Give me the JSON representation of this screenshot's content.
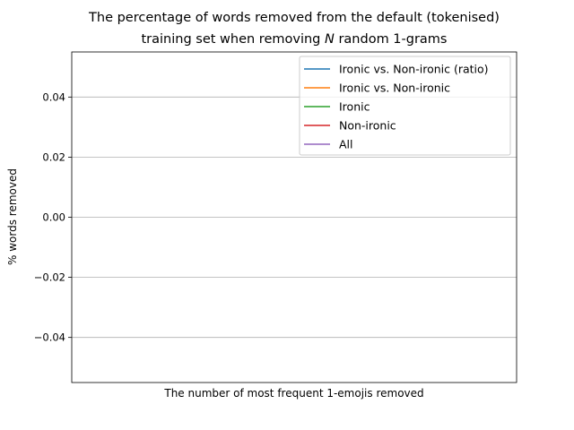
{
  "chart_data": {
    "type": "line",
    "title_line1": "The percentage of words removed from the default (tokenised)",
    "title_line2_pre": "training set when removing ",
    "title_line2_var": "N",
    "title_line2_post": " random 1-grams",
    "xlabel": "The number of most frequent 1-emojis removed",
    "ylabel": "% words removed",
    "ylim": [
      -0.055,
      0.055
    ],
    "yticks": [
      0.04,
      0.02,
      0.0,
      -0.02,
      -0.04
    ],
    "ytick_labels": [
      "0.04",
      "0.02",
      "0.00",
      "−0.02",
      "−0.04"
    ],
    "grid": "horizontal",
    "legend_position": "top-right",
    "series": [
      {
        "name": "Ironic vs. Non-ironic (ratio)",
        "color": "#1f77b4",
        "values": []
      },
      {
        "name": "Ironic vs. Non-ironic",
        "color": "#ff7f0e",
        "values": []
      },
      {
        "name": "Ironic",
        "color": "#2ca02c",
        "values": []
      },
      {
        "name": "Non-ironic",
        "color": "#d62728",
        "values": []
      },
      {
        "name": "All",
        "color": "#9467bd",
        "values": []
      }
    ]
  }
}
